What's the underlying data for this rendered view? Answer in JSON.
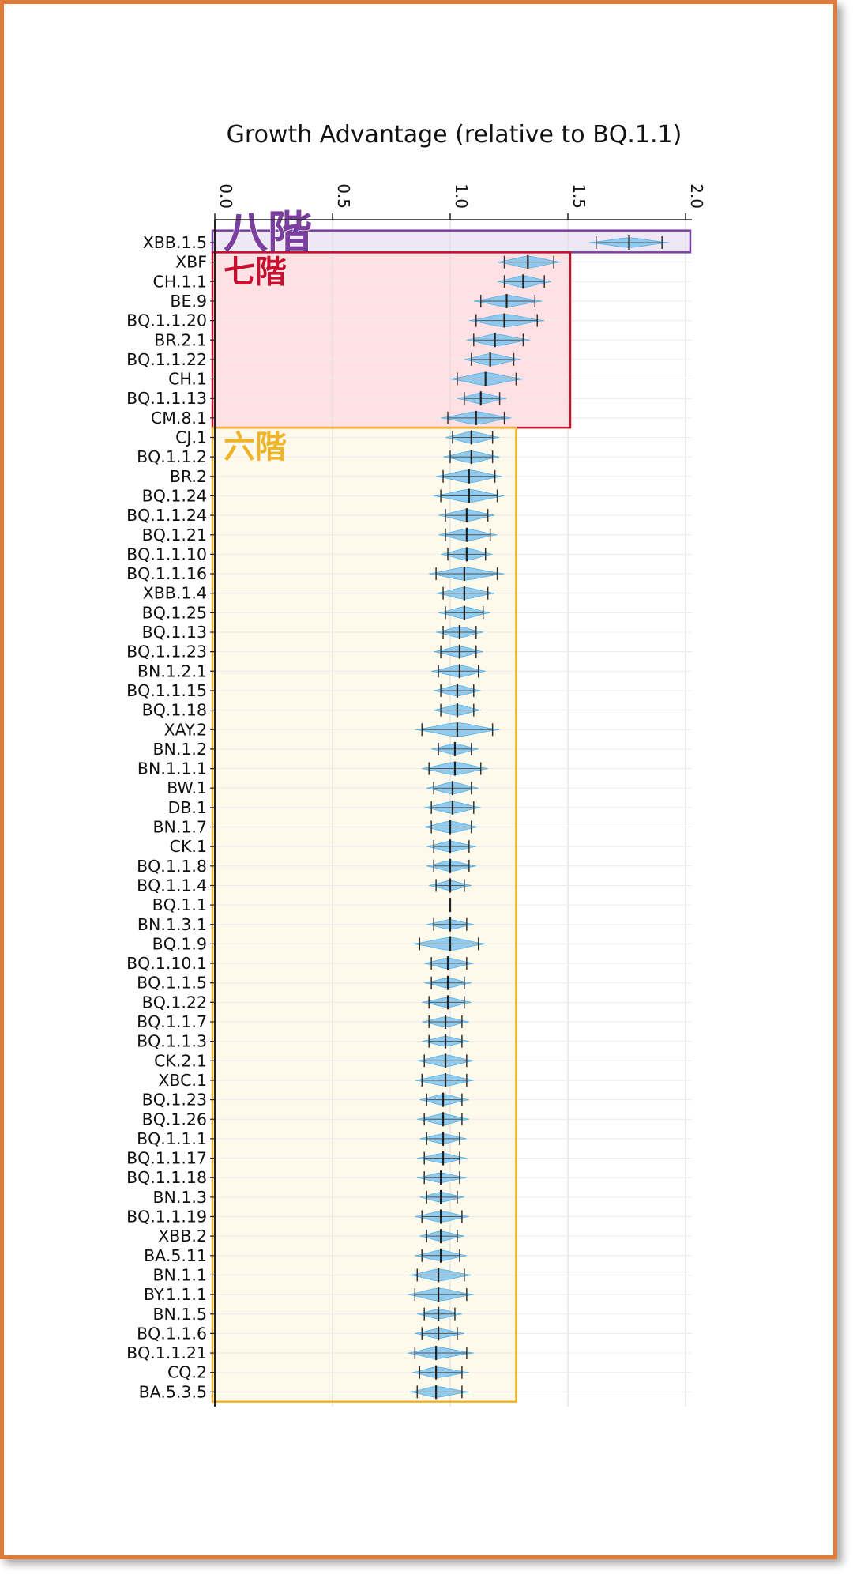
{
  "chart_data": {
    "type": "violin",
    "title": "Growth Advantage (relative to BQ.1.1)",
    "xlabel": "",
    "ylabel": "",
    "xlim": [
      0.0,
      2.0
    ],
    "xticks": [
      "0.0",
      "0.5",
      "1.0",
      "1.5",
      "2.0"
    ],
    "grid": true,
    "colors": {
      "violin": "#7ec4f0",
      "median": "#222222",
      "tier8": "#7b3fa0",
      "tier7": "#c8102e",
      "tier6": "#f0b429"
    },
    "categories": [
      {
        "label": "XBB.1.5",
        "median": 1.76,
        "lo": 1.62,
        "hi": 1.9,
        "width": 0.5
      },
      {
        "label": "XBF",
        "median": 1.33,
        "lo": 1.23,
        "hi": 1.44,
        "width": 0.6
      },
      {
        "label": "CH.1.1",
        "median": 1.31,
        "lo": 1.23,
        "hi": 1.4,
        "width": 0.6
      },
      {
        "label": "BE.9",
        "median": 1.24,
        "lo": 1.13,
        "hi": 1.36,
        "width": 0.6
      },
      {
        "label": "BQ.1.1.20",
        "median": 1.23,
        "lo": 1.11,
        "hi": 1.37,
        "width": 0.65
      },
      {
        "label": "BR.2.1",
        "median": 1.19,
        "lo": 1.1,
        "hi": 1.31,
        "width": 0.6
      },
      {
        "label": "BQ.1.1.22",
        "median": 1.17,
        "lo": 1.09,
        "hi": 1.27,
        "width": 0.6
      },
      {
        "label": "CH.1",
        "median": 1.15,
        "lo": 1.03,
        "hi": 1.28,
        "width": 0.65
      },
      {
        "label": "BQ.1.1.13",
        "median": 1.13,
        "lo": 1.06,
        "hi": 1.21,
        "width": 0.55
      },
      {
        "label": "CM.8.1",
        "median": 1.11,
        "lo": 0.99,
        "hi": 1.23,
        "width": 0.65
      },
      {
        "label": "CJ.1",
        "median": 1.09,
        "lo": 1.01,
        "hi": 1.18,
        "width": 0.6
      },
      {
        "label": "BQ.1.1.2",
        "median": 1.09,
        "lo": 1.0,
        "hi": 1.18,
        "width": 0.6
      },
      {
        "label": "BR.2",
        "median": 1.08,
        "lo": 0.97,
        "hi": 1.19,
        "width": 0.65
      },
      {
        "label": "BQ.1.24",
        "median": 1.08,
        "lo": 0.96,
        "hi": 1.2,
        "width": 0.65
      },
      {
        "label": "BQ.1.1.24",
        "median": 1.07,
        "lo": 0.98,
        "hi": 1.16,
        "width": 0.6
      },
      {
        "label": "BQ.1.21",
        "median": 1.07,
        "lo": 0.98,
        "hi": 1.17,
        "width": 0.6
      },
      {
        "label": "BQ.1.1.10",
        "median": 1.07,
        "lo": 0.99,
        "hi": 1.15,
        "width": 0.6
      },
      {
        "label": "BQ.1.1.16",
        "median": 1.06,
        "lo": 0.94,
        "hi": 1.2,
        "width": 0.65
      },
      {
        "label": "XBB.1.4",
        "median": 1.06,
        "lo": 0.97,
        "hi": 1.16,
        "width": 0.6
      },
      {
        "label": "BQ.1.25",
        "median": 1.06,
        "lo": 0.98,
        "hi": 1.14,
        "width": 0.6
      },
      {
        "label": "BQ.1.13",
        "median": 1.04,
        "lo": 0.97,
        "hi": 1.11,
        "width": 0.55
      },
      {
        "label": "BQ.1.1.23",
        "median": 1.04,
        "lo": 0.96,
        "hi": 1.11,
        "width": 0.55
      },
      {
        "label": "BN.1.2.1",
        "median": 1.04,
        "lo": 0.95,
        "hi": 1.12,
        "width": 0.6
      },
      {
        "label": "BQ.1.1.15",
        "median": 1.03,
        "lo": 0.96,
        "hi": 1.1,
        "width": 0.55
      },
      {
        "label": "BQ.1.18",
        "median": 1.03,
        "lo": 0.96,
        "hi": 1.1,
        "width": 0.55
      },
      {
        "label": "XAY.2",
        "median": 1.03,
        "lo": 0.88,
        "hi": 1.18,
        "width": 0.7
      },
      {
        "label": "BN.1.2",
        "median": 1.02,
        "lo": 0.95,
        "hi": 1.09,
        "width": 0.55
      },
      {
        "label": "BN.1.1.1",
        "median": 1.02,
        "lo": 0.91,
        "hi": 1.13,
        "width": 0.65
      },
      {
        "label": "BW.1",
        "median": 1.01,
        "lo": 0.93,
        "hi": 1.09,
        "width": 0.6
      },
      {
        "label": "DB.1",
        "median": 1.01,
        "lo": 0.92,
        "hi": 1.1,
        "width": 0.6
      },
      {
        "label": "BN.1.7",
        "median": 1.0,
        "lo": 0.92,
        "hi": 1.09,
        "width": 0.6
      },
      {
        "label": "CK.1",
        "median": 1.0,
        "lo": 0.93,
        "hi": 1.08,
        "width": 0.55
      },
      {
        "label": "BQ.1.1.8",
        "median": 1.0,
        "lo": 0.93,
        "hi": 1.08,
        "width": 0.55
      },
      {
        "label": "BQ.1.1.4",
        "median": 1.0,
        "lo": 0.94,
        "hi": 1.06,
        "width": 0.5
      },
      {
        "label": "BQ.1.1",
        "median": 1.0,
        "lo": 1.0,
        "hi": 1.0,
        "width": 0.0
      },
      {
        "label": "BN.1.3.1",
        "median": 1.0,
        "lo": 0.93,
        "hi": 1.07,
        "width": 0.5
      },
      {
        "label": "BQ.1.9",
        "median": 1.0,
        "lo": 0.87,
        "hi": 1.12,
        "width": 0.65
      },
      {
        "label": "BQ.1.10.1",
        "median": 0.99,
        "lo": 0.92,
        "hi": 1.07,
        "width": 0.55
      },
      {
        "label": "BQ.1.1.5",
        "median": 0.99,
        "lo": 0.92,
        "hi": 1.06,
        "width": 0.5
      },
      {
        "label": "BQ.1.22",
        "median": 0.99,
        "lo": 0.91,
        "hi": 1.06,
        "width": 0.5
      },
      {
        "label": "BQ.1.1.7",
        "median": 0.98,
        "lo": 0.91,
        "hi": 1.05,
        "width": 0.5
      },
      {
        "label": "BQ.1.1.3",
        "median": 0.98,
        "lo": 0.91,
        "hi": 1.05,
        "width": 0.5
      },
      {
        "label": "CK.2.1",
        "median": 0.98,
        "lo": 0.89,
        "hi": 1.07,
        "width": 0.6
      },
      {
        "label": "XBC.1",
        "median": 0.98,
        "lo": 0.88,
        "hi": 1.07,
        "width": 0.6
      },
      {
        "label": "BQ.1.23",
        "median": 0.97,
        "lo": 0.9,
        "hi": 1.05,
        "width": 0.55
      },
      {
        "label": "BQ.1.26",
        "median": 0.97,
        "lo": 0.89,
        "hi": 1.05,
        "width": 0.55
      },
      {
        "label": "BQ.1.1.1",
        "median": 0.97,
        "lo": 0.9,
        "hi": 1.04,
        "width": 0.5
      },
      {
        "label": "BQ.1.1.17",
        "median": 0.97,
        "lo": 0.89,
        "hi": 1.04,
        "width": 0.5
      },
      {
        "label": "BQ.1.1.18",
        "median": 0.96,
        "lo": 0.89,
        "hi": 1.04,
        "width": 0.5
      },
      {
        "label": "BN.1.3",
        "median": 0.96,
        "lo": 0.9,
        "hi": 1.03,
        "width": 0.5
      },
      {
        "label": "BQ.1.1.19",
        "median": 0.96,
        "lo": 0.88,
        "hi": 1.05,
        "width": 0.55
      },
      {
        "label": "XBB.2",
        "median": 0.96,
        "lo": 0.9,
        "hi": 1.03,
        "width": 0.5
      },
      {
        "label": "BA.5.11",
        "median": 0.96,
        "lo": 0.88,
        "hi": 1.04,
        "width": 0.55
      },
      {
        "label": "BN.1.1",
        "median": 0.95,
        "lo": 0.86,
        "hi": 1.06,
        "width": 0.6
      },
      {
        "label": "BY.1.1.1",
        "median": 0.95,
        "lo": 0.85,
        "hi": 1.07,
        "width": 0.65
      },
      {
        "label": "BN.1.5",
        "median": 0.95,
        "lo": 0.89,
        "hi": 1.02,
        "width": 0.5
      },
      {
        "label": "BQ.1.1.6",
        "median": 0.95,
        "lo": 0.88,
        "hi": 1.03,
        "width": 0.5
      },
      {
        "label": "BQ.1.1.21",
        "median": 0.94,
        "lo": 0.85,
        "hi": 1.07,
        "width": 0.6
      },
      {
        "label": "CQ.2",
        "median": 0.94,
        "lo": 0.87,
        "hi": 1.05,
        "width": 0.55
      },
      {
        "label": "BA.5.3.5",
        "median": 0.94,
        "lo": 0.86,
        "hi": 1.05,
        "width": 0.55
      }
    ],
    "tiers": [
      {
        "label": "八階",
        "from": 0,
        "to": 0,
        "x_end": 2.02
      },
      {
        "label": "七階",
        "from": 1,
        "to": 9,
        "x_end": 1.51
      },
      {
        "label": "六階",
        "from": 10,
        "to": 59,
        "x_end": 1.28
      }
    ]
  }
}
